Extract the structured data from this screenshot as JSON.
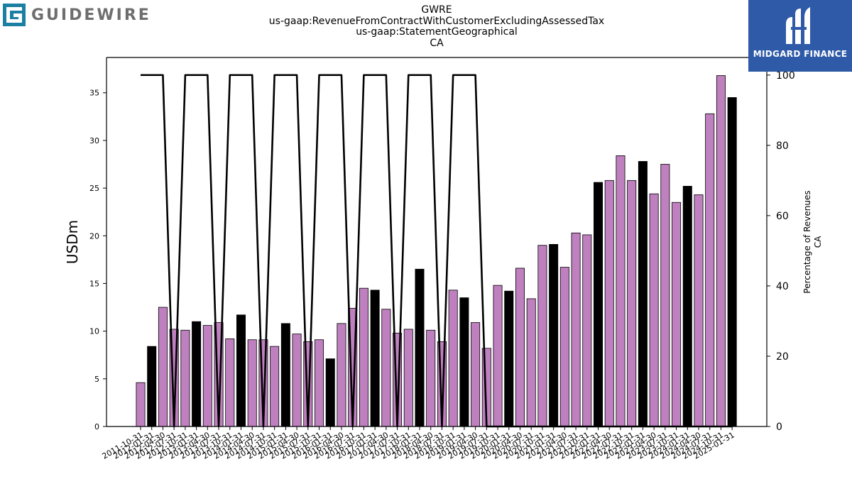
{
  "branding": {
    "left_logo_text": "GUIDEWIRE",
    "right_logo_text": "MIDGARD FINANCE"
  },
  "colors": {
    "bar_purple": "#bf80bf",
    "bar_black": "#000000",
    "line": "#000000",
    "brand_teal": "#1b7fa3",
    "brand_blue": "#2f5aa8"
  },
  "chart_data": {
    "type": "bar",
    "title_lines": [
      "GWRE",
      "us-gaap:RevenueFromContractWithCustomerExcludingAssessedTax",
      "us-gaap:StatementGeographical",
      "CA"
    ],
    "ylabel": "USDm",
    "ylabel_right_lines": [
      "Percentage of Revenues",
      "CA"
    ],
    "ylim": [
      0,
      38.7
    ],
    "ylim_right": [
      0,
      105
    ],
    "yticks": [
      0,
      5,
      10,
      15,
      20,
      25,
      30,
      35
    ],
    "yticks_right": [
      0,
      20,
      40,
      60,
      80,
      100
    ],
    "categories": [
      "2011-10-31",
      "2012-01-31",
      "2012-04-30",
      "2012-07-31",
      "2012-10-31",
      "2013-01-31",
      "2013-04-30",
      "2013-07-31",
      "2013-10-31",
      "2014-01-31",
      "2014-04-30",
      "2014-07-31",
      "2014-10-31",
      "2015-01-31",
      "2015-04-30",
      "2015-07-31",
      "2015-10-31",
      "2016-01-31",
      "2016-04-30",
      "2016-07-31",
      "2016-10-31",
      "2017-01-31",
      "2017-04-30",
      "2017-07-31",
      "2017-10-31",
      "2018-01-31",
      "2018-04-30",
      "2018-07-31",
      "2018-10-31",
      "2019-01-31",
      "2019-04-30",
      "2019-07-31",
      "2019-10-31",
      "2020-01-31",
      "2020-04-30",
      "2020-07-31",
      "2020-10-31",
      "2021-01-31",
      "2021-04-30",
      "2021-07-31",
      "2021-10-31",
      "2022-01-31",
      "2022-04-30",
      "2022-07-31",
      "2022-10-31",
      "2023-01-31",
      "2023-04-30",
      "2023-07-31",
      "2023-10-31",
      "2024-01-31",
      "2024-04-30",
      "2024-07-31",
      "2024-10-31",
      "2025-01-31"
    ],
    "xtick_labels": [
      "2011-10-31",
      "2012-01-31",
      "2012-04-30",
      "2012-07-31",
      "2012-10-31",
      "2013-01-31",
      "2013-04-30",
      "2013-07-31",
      "2013-10-31",
      "2014-01-31",
      "2014-04-30",
      "2014-07-31",
      "2014-10-31",
      "2015-01-31",
      "2015-04-30",
      "2015-07-31",
      "2015-10-31",
      "2016-01-31",
      "2016-04-30",
      "2016-07-31",
      "2016-10-31",
      "2017-01-31",
      "2017-04-30",
      "2017-07-31",
      "2017-10-31",
      "2018-01-31",
      "2018-04-30",
      "2018-07-31",
      "2018-10-31",
      "2019-01-31",
      "2019-04-30",
      "2019-07-31",
      "2019-10-31",
      "2020-01-31",
      "2020-04-30",
      "2020-07-31",
      "2020-10-31",
      "2021-01-31",
      "2021-04-30",
      "2021-07-31",
      "2021-10-31",
      "2022-01-31",
      "2022-04-30",
      "2022-07-31",
      "2022-10-31",
      "2023-01-31",
      "2023-04-30",
      "2023-07-31",
      "2023-10-31",
      "2024-01-31",
      "2024-04-30",
      "2024-07-31",
      "2024-10-31",
      "2025-01-31"
    ],
    "values": [
      4.6,
      8.4,
      12.5,
      10.2,
      10.1,
      11.0,
      10.6,
      10.9,
      9.2,
      11.7,
      9.1,
      9.1,
      8.4,
      10.8,
      9.7,
      8.9,
      9.1,
      7.1,
      10.8,
      12.4,
      14.5,
      14.3,
      12.3,
      9.8,
      10.2,
      16.5,
      10.1,
      8.9,
      14.3,
      13.5,
      10.9,
      8.2,
      14.8,
      14.2,
      16.6,
      13.4,
      19.0,
      19.1,
      16.7,
      20.3,
      20.1,
      25.6,
      25.8,
      28.4,
      25.8,
      27.8,
      24.4,
      27.5,
      23.5,
      25.2,
      24.3,
      32.8,
      36.8,
      34.5
    ],
    "bar_colors": [
      "purple",
      "black",
      "purple",
      "purple",
      "purple",
      "black",
      "purple",
      "purple",
      "purple",
      "black",
      "purple",
      "purple",
      "purple",
      "black",
      "purple",
      "purple",
      "purple",
      "black",
      "purple",
      "purple",
      "purple",
      "black",
      "purple",
      "purple",
      "purple",
      "black",
      "purple",
      "purple",
      "purple",
      "black",
      "purple",
      "purple",
      "purple",
      "black",
      "purple",
      "purple",
      "purple",
      "black",
      "purple",
      "purple",
      "purple",
      "black",
      "purple",
      "purple",
      "purple",
      "black",
      "purple",
      "purple",
      "purple",
      "black",
      "purple",
      "purple",
      "purple",
      "black"
    ],
    "series_right": {
      "values": [
        100,
        100,
        100,
        0,
        100,
        100,
        100,
        0,
        100,
        100,
        100,
        0,
        100,
        100,
        100,
        0,
        100,
        100,
        100,
        0,
        100,
        100,
        100,
        0,
        100,
        100,
        100,
        0,
        100,
        100,
        100,
        0,
        0,
        0,
        0,
        0,
        0,
        0,
        0,
        0,
        0,
        0,
        0,
        0,
        0,
        0,
        0,
        0,
        0,
        0,
        0,
        0,
        0,
        0
      ]
    },
    "grid": false,
    "legend": "none"
  }
}
